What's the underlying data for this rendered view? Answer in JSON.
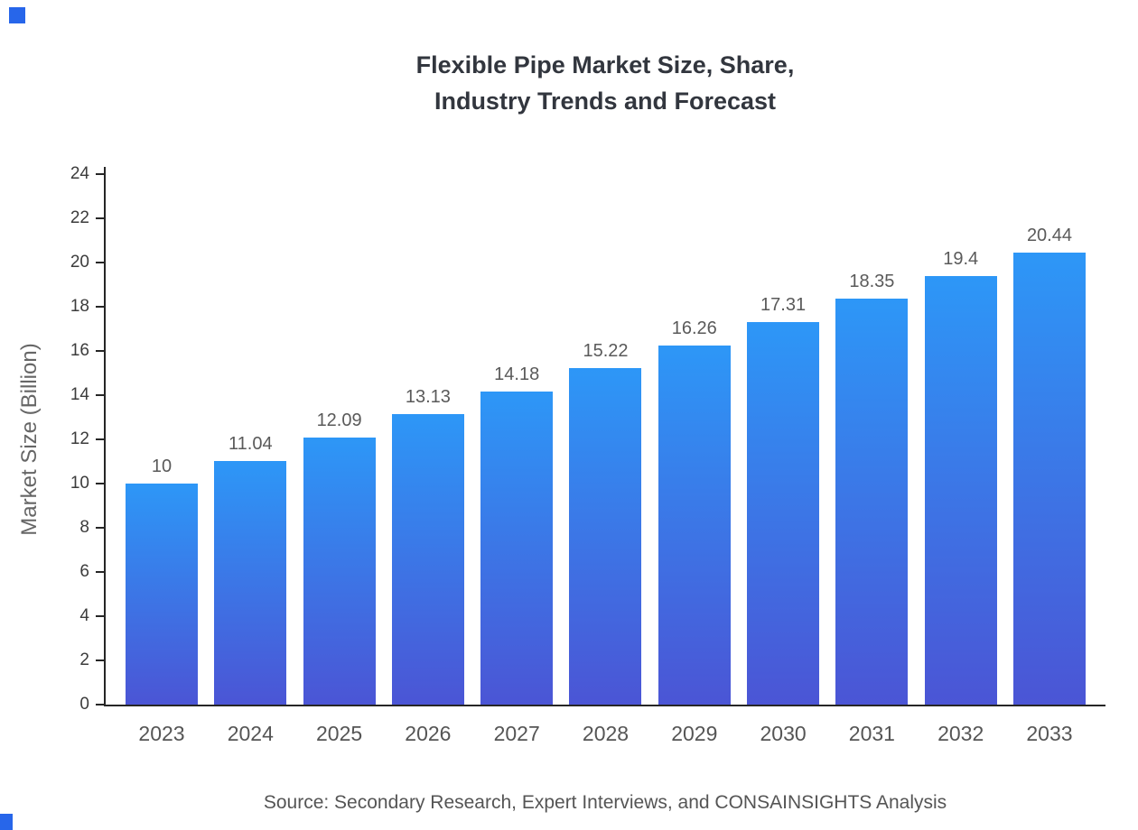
{
  "title": {
    "line1": "Flexible Pipe Market Size, Share,",
    "line2": "Industry Trends and Forecast"
  },
  "chart_data": {
    "type": "bar",
    "title": "Flexible Pipe Market Size, Share, Industry Trends and Forecast",
    "categories": [
      "2023",
      "2024",
      "2025",
      "2026",
      "2027",
      "2028",
      "2029",
      "2030",
      "2031",
      "2032",
      "2033"
    ],
    "values": [
      10,
      11.04,
      12.09,
      13.13,
      14.18,
      15.22,
      16.26,
      17.31,
      18.35,
      19.4,
      20.44
    ],
    "value_labels": [
      "10",
      "11.04",
      "12.09",
      "13.13",
      "14.18",
      "15.22",
      "16.26",
      "17.31",
      "18.35",
      "19.4",
      "20.44"
    ],
    "xlabel": "",
    "ylabel": "Market Size (Billion)",
    "ylim": [
      0,
      24
    ],
    "ytick_step": 2,
    "grid": false,
    "legend": "none",
    "bar_color_top": "#2d97f7",
    "bar_color_bottom": "#4b55d5"
  },
  "footer": {
    "source": "Source: Secondary Research, Expert Interviews, and CONSAINSIGHTS Analysis"
  },
  "colors": {
    "accent": "#2766ea",
    "axis": "#262626",
    "title_text": "#32363e",
    "tick_text": "#3c3c3c",
    "label_text": "#555555"
  }
}
